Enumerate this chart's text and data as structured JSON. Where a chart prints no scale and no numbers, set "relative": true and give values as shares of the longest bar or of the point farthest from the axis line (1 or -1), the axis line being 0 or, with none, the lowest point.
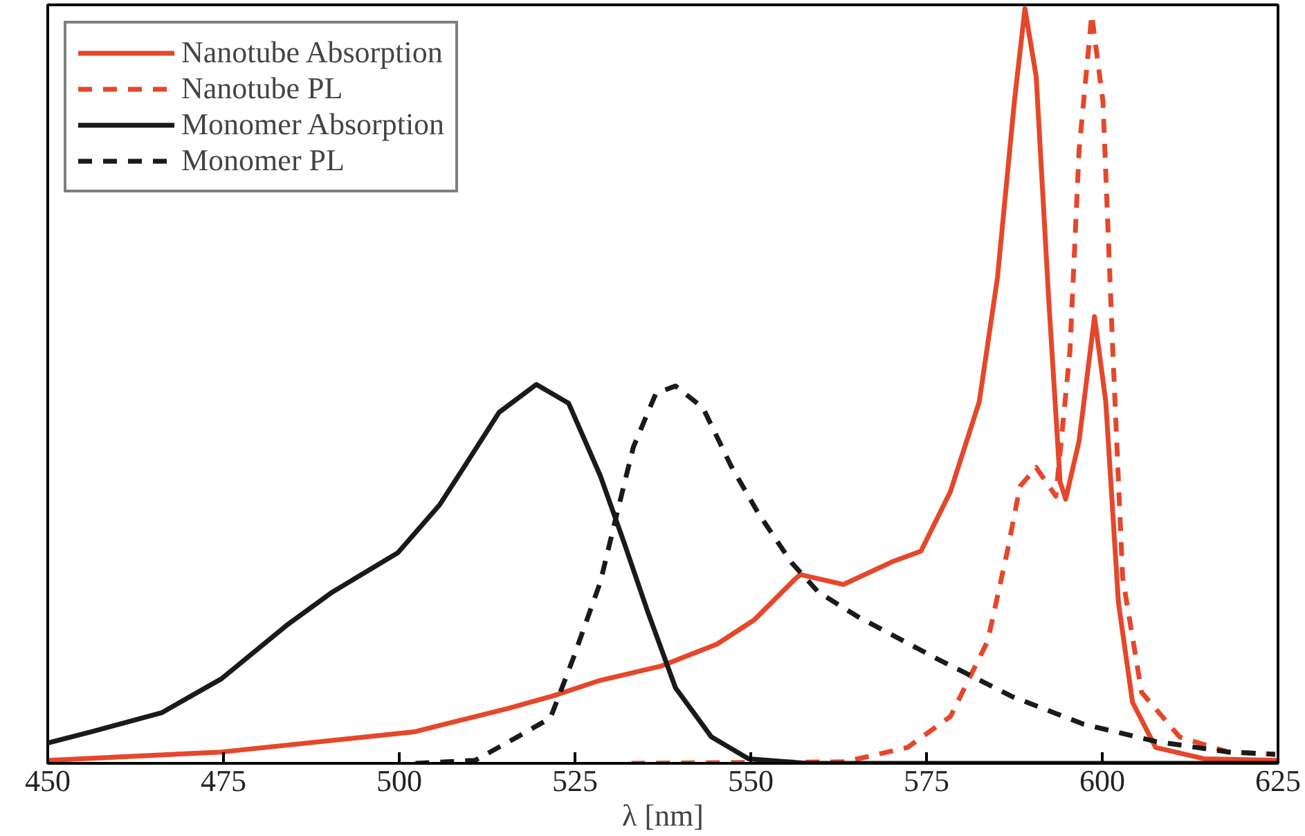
{
  "chart_data": {
    "type": "line",
    "relative": true,
    "xlabel": "λ [nm]",
    "xlim": [
      450,
      625
    ],
    "xticks": [
      450,
      475,
      500,
      525,
      550,
      575,
      600,
      625
    ],
    "grid": false,
    "legend": "top left",
    "series": [
      {
        "name": "Nanotube Absorption",
        "color": "#e5472b",
        "line_style": "solid",
        "x": [
          450,
          474.7,
          502.3,
          505.7,
          515.6,
          522.1,
          528.6,
          537.3,
          545.2,
          550.5,
          556.5,
          557.1,
          563.2,
          570.1,
          574.2,
          578.4,
          582.5,
          585.1,
          587.5,
          589,
          590.6,
          592.4,
          594,
          594.8,
          596.7,
          598.9,
          600.5,
          602.3,
          604.3,
          607.6,
          614.5,
          625
        ],
        "values": [
          0.004,
          0.015,
          0.042,
          0.05,
          0.073,
          0.09,
          0.11,
          0.129,
          0.158,
          0.19,
          0.246,
          0.25,
          0.237,
          0.267,
          0.281,
          0.36,
          0.479,
          0.644,
          0.877,
          1.0,
          0.91,
          0.612,
          0.373,
          0.35,
          0.427,
          0.592,
          0.479,
          0.213,
          0.081,
          0.021,
          0.006,
          0.004
        ]
      },
      {
        "name": "Nanotube PL",
        "color": "#e5472b",
        "line_style": "dashed",
        "x": [
          533,
          563.4,
          572.3,
          578.4,
          583.7,
          586.5,
          588.3,
          590.6,
          593.4,
          595.4,
          596.7,
          598.5,
          600.1,
          601.5,
          602.9,
          605.6,
          611,
          617.9,
          624.6
        ],
        "values": [
          0,
          0.002,
          0.021,
          0.062,
          0.162,
          0.281,
          0.367,
          0.392,
          0.354,
          0.546,
          0.812,
          0.992,
          0.877,
          0.546,
          0.246,
          0.094,
          0.035,
          0.015,
          0.012
        ]
      },
      {
        "name": "Monomer Absorption",
        "color": "#1a1a1a",
        "line_style": "solid",
        "x": [
          450,
          456.3,
          466.2,
          474.7,
          484,
          490.5,
          499.8,
          505.7,
          508.9,
          514.2,
          519.5,
          524.1,
          528.6,
          532,
          535.3,
          539.3,
          544.4,
          549.7,
          558,
          625
        ],
        "values": [
          0.027,
          0.042,
          0.067,
          0.112,
          0.183,
          0.227,
          0.279,
          0.342,
          0.388,
          0.465,
          0.502,
          0.477,
          0.381,
          0.292,
          0.202,
          0.1,
          0.035,
          0.006,
          0,
          0
        ]
      },
      {
        "name": "Monomer PL",
        "color": "#1a1a1a",
        "line_style": "dashed",
        "x": [
          502.3,
          510.8,
          516.8,
          521.5,
          524.7,
          528.6,
          530.6,
          533.3,
          536.5,
          539.3,
          543.2,
          547.2,
          551.1,
          555.8,
          559.6,
          565.1,
          576.2,
          587.3,
          597.3,
          607.6,
          617.9,
          624.6
        ],
        "values": [
          0,
          0.004,
          0.035,
          0.06,
          0.138,
          0.24,
          0.317,
          0.419,
          0.49,
          0.5,
          0.471,
          0.394,
          0.331,
          0.266,
          0.227,
          0.195,
          0.14,
          0.088,
          0.052,
          0.029,
          0.015,
          0.012
        ]
      }
    ]
  }
}
